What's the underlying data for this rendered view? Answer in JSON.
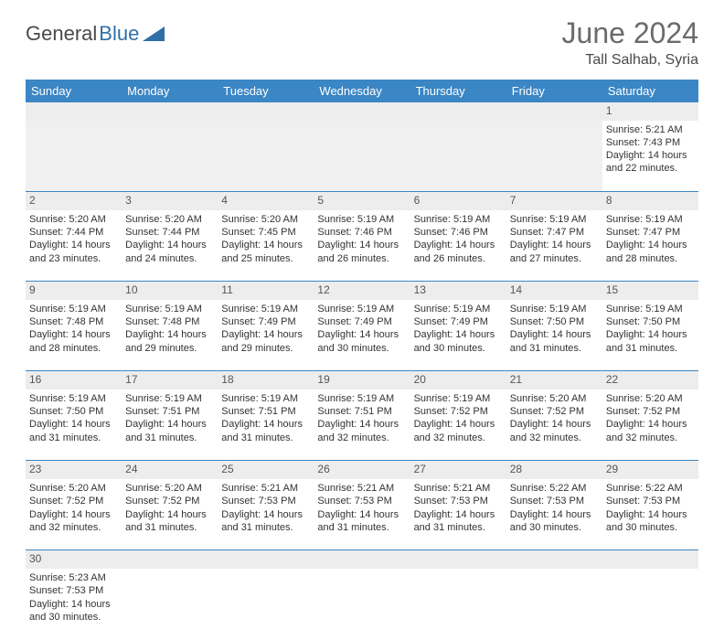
{
  "logo": {
    "text1": "General",
    "text2": "Blue"
  },
  "title": "June 2024",
  "location": "Tall Salhab, Syria",
  "colors": {
    "header_bg": "#3b86c4",
    "header_text": "#ffffff",
    "daynum_bg": "#ededed",
    "border": "#3b86c4",
    "logo_gray": "#4a4a4a",
    "logo_blue": "#2f6fa8"
  },
  "weekdays": [
    "Sunday",
    "Monday",
    "Tuesday",
    "Wednesday",
    "Thursday",
    "Friday",
    "Saturday"
  ],
  "weeks": [
    {
      "nums": [
        "",
        "",
        "",
        "",
        "",
        "",
        "1"
      ],
      "cells": [
        null,
        null,
        null,
        null,
        null,
        null,
        {
          "sunrise": "5:21 AM",
          "sunset": "7:43 PM",
          "daylight": "14 hours and 22 minutes."
        }
      ]
    },
    {
      "nums": [
        "2",
        "3",
        "4",
        "5",
        "6",
        "7",
        "8"
      ],
      "cells": [
        {
          "sunrise": "5:20 AM",
          "sunset": "7:44 PM",
          "daylight": "14 hours and 23 minutes."
        },
        {
          "sunrise": "5:20 AM",
          "sunset": "7:44 PM",
          "daylight": "14 hours and 24 minutes."
        },
        {
          "sunrise": "5:20 AM",
          "sunset": "7:45 PM",
          "daylight": "14 hours and 25 minutes."
        },
        {
          "sunrise": "5:19 AM",
          "sunset": "7:46 PM",
          "daylight": "14 hours and 26 minutes."
        },
        {
          "sunrise": "5:19 AM",
          "sunset": "7:46 PM",
          "daylight": "14 hours and 26 minutes."
        },
        {
          "sunrise": "5:19 AM",
          "sunset": "7:47 PM",
          "daylight": "14 hours and 27 minutes."
        },
        {
          "sunrise": "5:19 AM",
          "sunset": "7:47 PM",
          "daylight": "14 hours and 28 minutes."
        }
      ]
    },
    {
      "nums": [
        "9",
        "10",
        "11",
        "12",
        "13",
        "14",
        "15"
      ],
      "cells": [
        {
          "sunrise": "5:19 AM",
          "sunset": "7:48 PM",
          "daylight": "14 hours and 28 minutes."
        },
        {
          "sunrise": "5:19 AM",
          "sunset": "7:48 PM",
          "daylight": "14 hours and 29 minutes."
        },
        {
          "sunrise": "5:19 AM",
          "sunset": "7:49 PM",
          "daylight": "14 hours and 29 minutes."
        },
        {
          "sunrise": "5:19 AM",
          "sunset": "7:49 PM",
          "daylight": "14 hours and 30 minutes."
        },
        {
          "sunrise": "5:19 AM",
          "sunset": "7:49 PM",
          "daylight": "14 hours and 30 minutes."
        },
        {
          "sunrise": "5:19 AM",
          "sunset": "7:50 PM",
          "daylight": "14 hours and 31 minutes."
        },
        {
          "sunrise": "5:19 AM",
          "sunset": "7:50 PM",
          "daylight": "14 hours and 31 minutes."
        }
      ]
    },
    {
      "nums": [
        "16",
        "17",
        "18",
        "19",
        "20",
        "21",
        "22"
      ],
      "cells": [
        {
          "sunrise": "5:19 AM",
          "sunset": "7:50 PM",
          "daylight": "14 hours and 31 minutes."
        },
        {
          "sunrise": "5:19 AM",
          "sunset": "7:51 PM",
          "daylight": "14 hours and 31 minutes."
        },
        {
          "sunrise": "5:19 AM",
          "sunset": "7:51 PM",
          "daylight": "14 hours and 31 minutes."
        },
        {
          "sunrise": "5:19 AM",
          "sunset": "7:51 PM",
          "daylight": "14 hours and 32 minutes."
        },
        {
          "sunrise": "5:19 AM",
          "sunset": "7:52 PM",
          "daylight": "14 hours and 32 minutes."
        },
        {
          "sunrise": "5:20 AM",
          "sunset": "7:52 PM",
          "daylight": "14 hours and 32 minutes."
        },
        {
          "sunrise": "5:20 AM",
          "sunset": "7:52 PM",
          "daylight": "14 hours and 32 minutes."
        }
      ]
    },
    {
      "nums": [
        "23",
        "24",
        "25",
        "26",
        "27",
        "28",
        "29"
      ],
      "cells": [
        {
          "sunrise": "5:20 AM",
          "sunset": "7:52 PM",
          "daylight": "14 hours and 32 minutes."
        },
        {
          "sunrise": "5:20 AM",
          "sunset": "7:52 PM",
          "daylight": "14 hours and 31 minutes."
        },
        {
          "sunrise": "5:21 AM",
          "sunset": "7:53 PM",
          "daylight": "14 hours and 31 minutes."
        },
        {
          "sunrise": "5:21 AM",
          "sunset": "7:53 PM",
          "daylight": "14 hours and 31 minutes."
        },
        {
          "sunrise": "5:21 AM",
          "sunset": "7:53 PM",
          "daylight": "14 hours and 31 minutes."
        },
        {
          "sunrise": "5:22 AM",
          "sunset": "7:53 PM",
          "daylight": "14 hours and 30 minutes."
        },
        {
          "sunrise": "5:22 AM",
          "sunset": "7:53 PM",
          "daylight": "14 hours and 30 minutes."
        }
      ]
    },
    {
      "nums": [
        "30",
        "",
        "",
        "",
        "",
        "",
        ""
      ],
      "cells": [
        {
          "sunrise": "5:23 AM",
          "sunset": "7:53 PM",
          "daylight": "14 hours and 30 minutes."
        },
        null,
        null,
        null,
        null,
        null,
        null
      ]
    }
  ],
  "labels": {
    "sunrise": "Sunrise: ",
    "sunset": "Sunset: ",
    "daylight": "Daylight: "
  }
}
